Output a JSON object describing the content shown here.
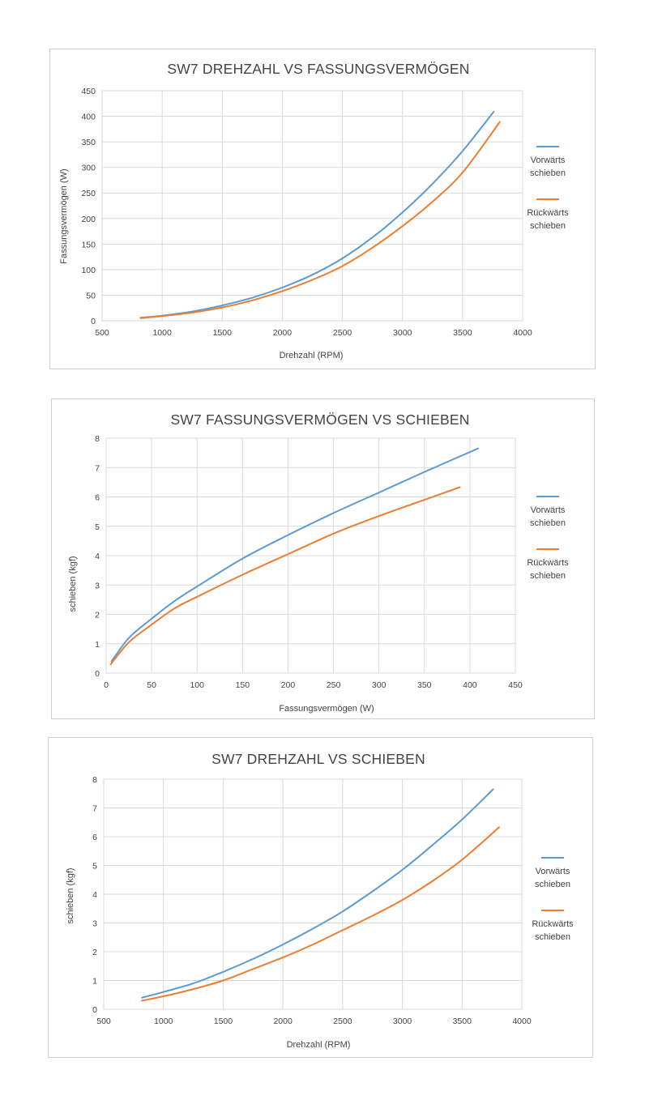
{
  "chart_data": [
    {
      "type": "line",
      "title": "SW7 DREHZAHL VS FASSUNGSVERMÖGEN",
      "xlabel": "Drehzahl (RPM)",
      "ylabel": "Fassungsvermögen (W)",
      "xlim": [
        500,
        4000
      ],
      "ylim": [
        0,
        450
      ],
      "xticks": [
        500,
        1000,
        1500,
        2000,
        2500,
        3000,
        3500,
        4000
      ],
      "yticks": [
        0,
        50,
        100,
        150,
        200,
        250,
        300,
        350,
        400,
        450
      ],
      "grid": true,
      "legend_position": "right",
      "series": [
        {
          "name": "Vorwärts schieben",
          "color": "#5b9bd5",
          "x": [
            820,
            1000,
            1250,
            1500,
            1750,
            2000,
            2250,
            2500,
            2750,
            3000,
            3250,
            3500,
            3760
          ],
          "y": [
            6,
            10,
            18,
            30,
            45,
            65,
            90,
            122,
            163,
            212,
            268,
            332,
            409
          ]
        },
        {
          "name": "Rückwärts schieben",
          "color": "#ed7d31",
          "x": [
            820,
            1000,
            1250,
            1500,
            1750,
            2000,
            2250,
            2500,
            2750,
            3000,
            3250,
            3500,
            3810
          ],
          "y": [
            5,
            9,
            16,
            26,
            40,
            58,
            80,
            107,
            143,
            185,
            233,
            290,
            389
          ]
        }
      ]
    },
    {
      "type": "line",
      "title": "SW7 FASSUNGSVERMÖGEN VS SCHIEBEN",
      "xlabel": "Fassungsvermögen (W)",
      "ylabel": "schieben (kgf)",
      "xlim": [
        0,
        450
      ],
      "ylim": [
        0,
        8
      ],
      "xticks": [
        0,
        50,
        100,
        150,
        200,
        250,
        300,
        350,
        400,
        450
      ],
      "yticks": [
        0,
        1,
        2,
        3,
        4,
        5,
        6,
        7,
        8
      ],
      "grid": true,
      "legend_position": "right",
      "series": [
        {
          "name": "Vorwärts schieben",
          "color": "#5b9bd5",
          "x": [
            6,
            25,
            50,
            75,
            100,
            150,
            200,
            250,
            300,
            350,
            409
          ],
          "y": [
            0.4,
            1.2,
            1.85,
            2.45,
            2.95,
            3.9,
            4.7,
            5.45,
            6.15,
            6.85,
            7.65
          ]
        },
        {
          "name": "Rückwärts schieben",
          "color": "#ed7d31",
          "x": [
            5,
            25,
            50,
            75,
            100,
            150,
            200,
            250,
            300,
            350,
            389
          ],
          "y": [
            0.3,
            1.05,
            1.65,
            2.2,
            2.6,
            3.35,
            4.05,
            4.75,
            5.35,
            5.9,
            6.33
          ]
        }
      ]
    },
    {
      "type": "line",
      "title": "SW7 DREHZAHL VS SCHIEBEN",
      "xlabel": "Drehzahl (RPM)",
      "ylabel": "schieben (kgf)",
      "xlim": [
        500,
        4000
      ],
      "ylim": [
        0,
        8
      ],
      "xticks": [
        500,
        1000,
        1500,
        2000,
        2500,
        3000,
        3500,
        4000
      ],
      "yticks": [
        0,
        1,
        2,
        3,
        4,
        5,
        6,
        7,
        8
      ],
      "grid": true,
      "legend_position": "right",
      "series": [
        {
          "name": "Vorwärts schieben",
          "color": "#5b9bd5",
          "x": [
            820,
            1000,
            1250,
            1500,
            1750,
            2000,
            2250,
            2500,
            2750,
            3000,
            3250,
            3500,
            3760
          ],
          "y": [
            0.4,
            0.6,
            0.9,
            1.3,
            1.75,
            2.25,
            2.8,
            3.4,
            4.1,
            4.85,
            5.7,
            6.6,
            7.65
          ]
        },
        {
          "name": "Rückwärts schieben",
          "color": "#ed7d31",
          "x": [
            820,
            1000,
            1250,
            1500,
            1750,
            2000,
            2250,
            2500,
            2750,
            3000,
            3250,
            3500,
            3810
          ],
          "y": [
            0.3,
            0.45,
            0.7,
            1.0,
            1.4,
            1.8,
            2.25,
            2.75,
            3.25,
            3.8,
            4.45,
            5.2,
            6.33
          ]
        }
      ]
    }
  ]
}
